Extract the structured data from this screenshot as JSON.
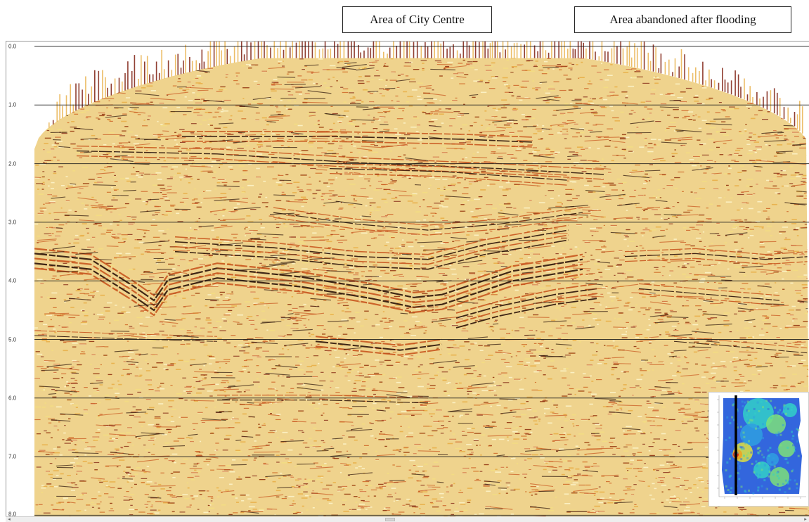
{
  "callouts": {
    "city_centre": "Area of City Centre",
    "flooding": "Area abandoned after flooding"
  },
  "axis": {
    "tick_labels": [
      "0.0",
      "1.0",
      "2.0",
      "3.0",
      "4.0",
      "5.0",
      "6.0",
      "7.0",
      "8.0"
    ],
    "tick_values": [
      0,
      1,
      2,
      3,
      4,
      5,
      6,
      7,
      8
    ]
  },
  "seismic": {
    "palette": [
      "#fbf0c2",
      "#f3dc83",
      "#e9b350",
      "#c8551e",
      "#7e1e0f",
      "#2a1208"
    ],
    "gridline_color": "#1a1a1a"
  },
  "inset_map": {
    "palette": [
      "#3366dd",
      "#2f9fe0",
      "#32d0c8",
      "#7ee07a",
      "#e0e040",
      "#f0a020",
      "#d02020"
    ]
  },
  "scrollbar": {
    "left_arrow": "◂",
    "right_arrow": "▸"
  }
}
